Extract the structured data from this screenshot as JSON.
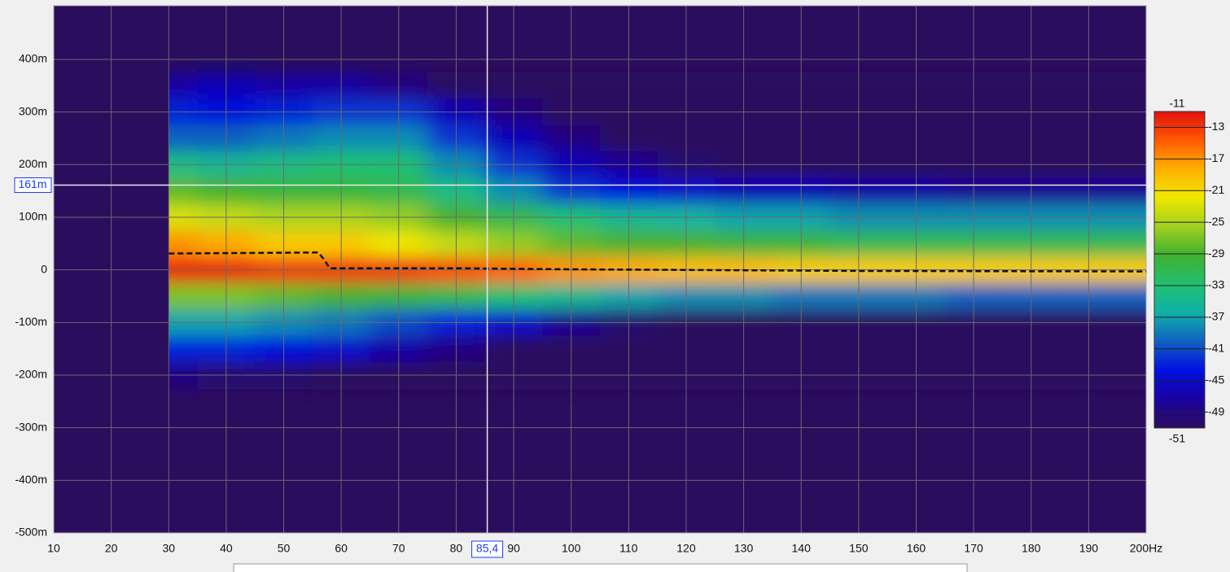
{
  "chart_data": {
    "type": "heatmap",
    "xlim": [
      10,
      200
    ],
    "ylim": [
      -500,
      502
    ],
    "xticks": [
      10,
      20,
      30,
      40,
      50,
      60,
      70,
      80,
      90,
      100,
      110,
      120,
      130,
      140,
      150,
      160,
      170,
      180,
      190,
      {
        "value": 200,
        "label": "200Hz"
      }
    ],
    "yticks": [
      {
        "value": 400,
        "label": "400m"
      },
      {
        "value": 300,
        "label": "300m"
      },
      {
        "value": 200,
        "label": "200m"
      },
      {
        "value": 100,
        "label": "100m"
      },
      0,
      {
        "value": -100,
        "label": "-100m"
      },
      {
        "value": -200,
        "label": "-200m"
      },
      {
        "value": -300,
        "label": "-300m"
      },
      {
        "value": -400,
        "label": "-400m"
      },
      {
        "value": -500,
        "label": "-500m"
      }
    ],
    "grid": true,
    "x": [
      30,
      40,
      50,
      60,
      70,
      80,
      90,
      100,
      110,
      120,
      130,
      140,
      150,
      160,
      170,
      180,
      190,
      200
    ],
    "y": [
      350,
      300,
      250,
      200,
      150,
      100,
      50,
      0,
      -50,
      -100,
      -150,
      -200
    ],
    "z": [
      [
        -47,
        -46,
        -47,
        -47,
        -49,
        -51,
        -51,
        -51,
        -51,
        -51,
        -51,
        -51,
        -51,
        -51,
        -51,
        -51,
        -51,
        -51
      ],
      [
        -43,
        -44,
        -43,
        -42,
        -42,
        -46,
        -49,
        -51,
        -51,
        -51,
        -51,
        -51,
        -51,
        -51,
        -51,
        -51,
        -51,
        -51
      ],
      [
        -40,
        -40,
        -39,
        -38,
        -38,
        -42,
        -46,
        -49,
        -51,
        -51,
        -51,
        -51,
        -51,
        -51,
        -51,
        -51,
        -51,
        -51
      ],
      [
        -34,
        -35,
        -34,
        -33,
        -33,
        -38,
        -42,
        -46,
        -48,
        -50,
        -51,
        -51,
        -51,
        -51,
        -51,
        -51,
        -51,
        -51
      ],
      [
        -28,
        -29,
        -30,
        -30,
        -31,
        -34,
        -38,
        -42,
        -44,
        -45,
        -46,
        -46,
        -47,
        -47,
        -48,
        -48,
        -48,
        -48
      ],
      [
        -23,
        -24,
        -25,
        -25,
        -26,
        -29,
        -31,
        -33,
        -35,
        -36,
        -37,
        -37,
        -38,
        -38,
        -38,
        -38,
        -38,
        -38
      ],
      [
        -17,
        -18,
        -20,
        -20,
        -22,
        -24,
        -26,
        -28,
        -29,
        -29,
        -30,
        -30,
        -31,
        -31,
        -31,
        -31,
        -31,
        -31
      ],
      [
        -12,
        -12,
        -13,
        -13,
        -13,
        -14,
        -15,
        -17,
        -18,
        -19,
        -19,
        -20,
        -20,
        -20,
        -20,
        -20,
        -20,
        -20
      ],
      [
        -27,
        -27,
        -28,
        -29,
        -30,
        -31,
        -33,
        -35,
        -37,
        -38,
        -38,
        -39,
        -39,
        -39,
        -40,
        -40,
        -40,
        -40
      ],
      [
        -37,
        -37,
        -38,
        -39,
        -41,
        -43,
        -45,
        -48,
        -50,
        -51,
        -51,
        -51,
        -51,
        -51,
        -51,
        -51,
        -51,
        -51
      ],
      [
        -43,
        -43,
        -44,
        -45,
        -47,
        -49,
        -51,
        -51,
        -51,
        -51,
        -51,
        -51,
        -51,
        -51,
        -51,
        -51,
        -51,
        -51
      ],
      [
        -49,
        -50,
        -50,
        -51,
        -51,
        -51,
        -51,
        -51,
        -51,
        -51,
        -51,
        -51,
        -51,
        -51,
        -51,
        -51,
        -51,
        -51
      ]
    ],
    "zlim": [
      -51,
      -11
    ],
    "colorbar_ticks": [
      -13,
      -17,
      -21,
      -25,
      -29,
      -33,
      -37,
      -41,
      -45,
      -49
    ],
    "colorscale": [
      "#2b0d5e",
      "#1a00a0",
      "#0010e0",
      "#1060c0",
      "#10b0a8",
      "#20c070",
      "#40b030",
      "#a0d020",
      "#f0e800",
      "#ffb000",
      "#ff5a00",
      "#e01010"
    ],
    "background": "#2b0d5e",
    "peak_line": {
      "x": [
        30,
        56,
        57,
        58,
        80,
        100,
        150,
        200
      ],
      "y": [
        31,
        33,
        20,
        3,
        3,
        1,
        -2,
        -3
      ],
      "color": "#111111"
    },
    "cursor": {
      "x": {
        "value": 85.4,
        "label": "85,4"
      },
      "y": {
        "value": 161,
        "label": "161m"
      }
    }
  }
}
